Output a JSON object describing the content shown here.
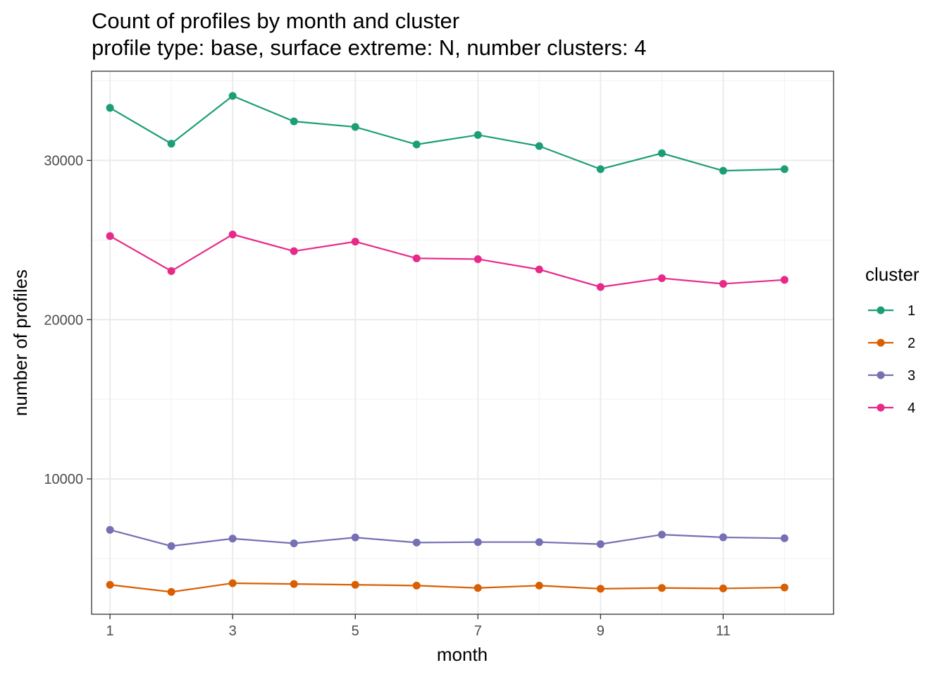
{
  "chart_data": {
    "type": "line",
    "title": "Count of profiles by month and cluster",
    "subtitle": "profile type: base, surface extreme: N, number clusters: 4",
    "xlabel": "month",
    "ylabel": "number of profiles",
    "xlim": [
      0.7,
      12.8
    ],
    "ylim": [
      1500,
      35600
    ],
    "x_ticks": [
      1,
      3,
      5,
      7,
      9,
      11
    ],
    "y_ticks": [
      10000,
      20000,
      30000
    ],
    "grid": true,
    "legend": {
      "title": "cluster",
      "position": "right"
    },
    "x": [
      1,
      2,
      3,
      4,
      5,
      6,
      7,
      8,
      9,
      10,
      11,
      12
    ],
    "series": [
      {
        "name": "1",
        "color": "#1b9e77",
        "values": [
          33300,
          31050,
          34050,
          32450,
          32100,
          31000,
          31600,
          30900,
          29450,
          30450,
          29350,
          29450
        ]
      },
      {
        "name": "2",
        "color": "#d95f02",
        "values": [
          3350,
          2900,
          3450,
          3400,
          3350,
          3300,
          3150,
          3300,
          3100,
          3150,
          3120,
          3180
        ]
      },
      {
        "name": "3",
        "color": "#7570b3",
        "values": [
          6800,
          5780,
          6250,
          5950,
          6320,
          6000,
          6030,
          6030,
          5900,
          6500,
          6330,
          6270
        ]
      },
      {
        "name": "4",
        "color": "#e7298a",
        "values": [
          25250,
          23050,
          25350,
          24300,
          24900,
          23850,
          23800,
          23150,
          22050,
          22600,
          22250,
          22500
        ]
      }
    ]
  }
}
